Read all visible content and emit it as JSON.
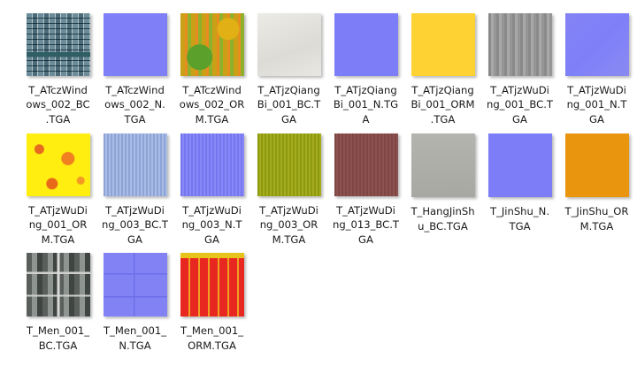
{
  "files": [
    {
      "name": "T_ATczWindows_002_BC.TGA",
      "lines": [
        "T_ATczWind",
        "ows_002_BC",
        ".TGA"
      ],
      "icon": "window-facade-texture-thumbnail"
    },
    {
      "name": "T_ATczWindows_002_N.TGA",
      "lines": [
        "T_ATczWind",
        "ows_002_N.",
        "TGA"
      ],
      "icon": "normal-map-thumbnail"
    },
    {
      "name": "T_ATczWindows_002_ORM.TGA",
      "lines": [
        "T_ATczWind",
        "ows_002_OR",
        "M.TGA"
      ],
      "icon": "orm-map-thumbnail"
    },
    {
      "name": "T_ATjzQiangBi_001_BC.TGA",
      "lines": [
        "T_ATjzQiang",
        "Bi_001_BC.T",
        "GA"
      ],
      "icon": "plaster-wall-texture-thumbnail"
    },
    {
      "name": "T_ATjzQiangBi_001_N.TGA",
      "lines": [
        "T_ATjzQiang",
        "Bi_001_N.TG",
        "A"
      ],
      "icon": "normal-map-thumbnail"
    },
    {
      "name": "T_ATjzQiangBi_001_ORM.TGA",
      "lines": [
        "T_ATjzQiang",
        "Bi_001_ORM",
        ".TGA"
      ],
      "icon": "orm-map-thumbnail"
    },
    {
      "name": "T_ATjzWuDing_001_BC.TGA",
      "lines": [
        "T_ATjzWuDi",
        "ng_001_BC.T",
        "GA"
      ],
      "icon": "concrete-roof-texture-thumbnail"
    },
    {
      "name": "T_ATjzWuDing_001_N.TGA",
      "lines": [
        "T_ATjzWuDi",
        "ng_001_N.T",
        "GA"
      ],
      "icon": "normal-map-thumbnail"
    },
    {
      "name": "T_ATjzWuDing_001_ORM.TGA",
      "lines": [
        "T_ATjzWuDi",
        "ng_001_OR",
        "M.TGA"
      ],
      "icon": "orm-map-thumbnail"
    },
    {
      "name": "T_ATjzWuDing_003_BC.TGA",
      "lines": [
        "T_ATjzWuDi",
        "ng_003_BC.T",
        "GA"
      ],
      "icon": "tile-roof-texture-thumbnail"
    },
    {
      "name": "T_ATjzWuDing_003_N.TGA",
      "lines": [
        "T_ATjzWuDi",
        "ng_003_N.T",
        "GA"
      ],
      "icon": "normal-map-thumbnail"
    },
    {
      "name": "T_ATjzWuDing_003_ORM.TGA",
      "lines": [
        "T_ATjzWuDi",
        "ng_003_OR",
        "M.TGA"
      ],
      "icon": "orm-map-thumbnail"
    },
    {
      "name": "T_ATjzWuDing_013_BC.TGA",
      "lines": [
        "T_ATjzWuDi",
        "ng_013_BC.T",
        "GA"
      ],
      "icon": "brown-roof-texture-thumbnail"
    },
    {
      "name": "T_HangJinShu_BC.TGA",
      "lines": [
        "T_HangJinSh",
        "u_BC.TGA"
      ],
      "icon": "metal-texture-thumbnail"
    },
    {
      "name": "T_JinShu_N.TGA",
      "lines": [
        "T_JinShu_N.",
        "TGA"
      ],
      "icon": "normal-map-thumbnail"
    },
    {
      "name": "T_JinShu_ORM.TGA",
      "lines": [
        "T_JinShu_OR",
        "M.TGA"
      ],
      "icon": "orm-map-thumbnail"
    },
    {
      "name": "T_Men_001_BC.TGA",
      "lines": [
        "T_Men_001_",
        "BC.TGA"
      ],
      "icon": "door-texture-thumbnail"
    },
    {
      "name": "T_Men_001_N.TGA",
      "lines": [
        "T_Men_001_",
        "N.TGA"
      ],
      "icon": "normal-map-thumbnail"
    },
    {
      "name": "T_Men_001_ORM.TGA",
      "lines": [
        "T_Men_001_",
        "ORM.TGA"
      ],
      "icon": "orm-map-thumbnail"
    }
  ]
}
